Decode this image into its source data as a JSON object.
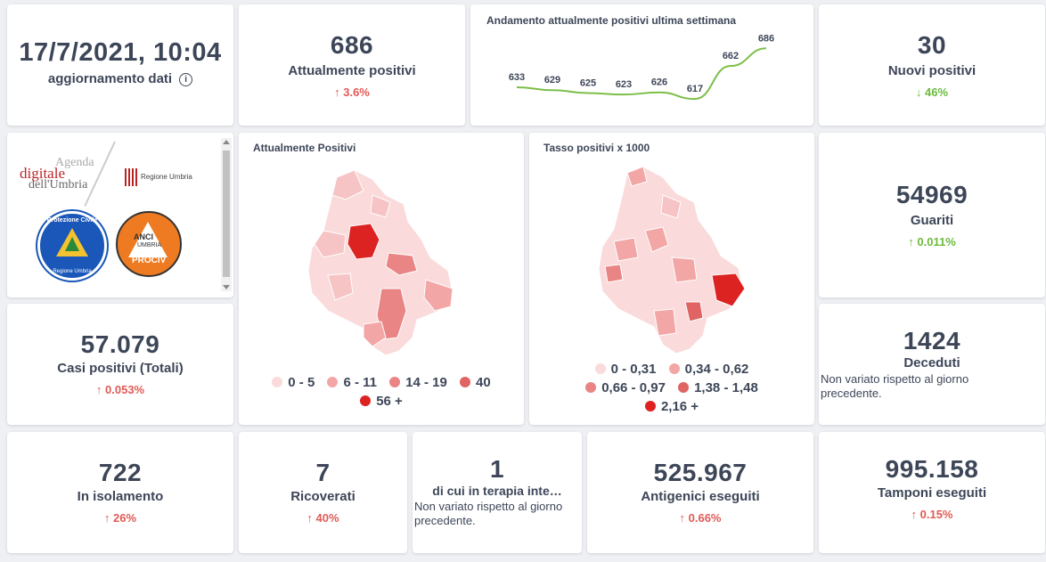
{
  "update": {
    "datetime": "17/7/2021, 10:04",
    "label": "aggiornamento dati",
    "info_icon": "info-icon"
  },
  "attuali": {
    "value": "686",
    "label": "Attualmente positivi",
    "change": "3.6%",
    "direction": "up"
  },
  "trend": {
    "title": "Andamento attualmente positivi ultima settimana",
    "line_color": "#7cbf48"
  },
  "chart_data": {
    "type": "line",
    "title": "Andamento attualmente positivi ultima settimana",
    "x": [
      1,
      2,
      3,
      4,
      5,
      6,
      7,
      8
    ],
    "values": [
      633,
      629,
      625,
      623,
      626,
      617,
      662,
      686
    ],
    "labels": [
      "633",
      "629",
      "625",
      "623",
      "626",
      "617",
      "662",
      "686"
    ],
    "xlabel": "",
    "ylabel": "",
    "grid": false
  },
  "nuovi": {
    "value": "30",
    "label": "Nuovi positivi",
    "change": "46%",
    "direction": "down"
  },
  "logos": {
    "agenda_line1": "Agenda",
    "agenda_line2": "digitale",
    "agenda_line3": "dell'Umbria",
    "regione": "Regione Umbria",
    "protezione": "Protezione Civile",
    "protezione_sub": "Regione Umbria",
    "anci_line1": "ANCI",
    "anci_line2": "UMBRIA",
    "anci_line3": "PROCIV"
  },
  "map1": {
    "title": "Attualmente Positivi",
    "legend": [
      "0 - 5",
      "6 - 11",
      "14 - 19",
      "40",
      "56 +"
    ],
    "colors": [
      "#fadada",
      "#f2a7a6",
      "#e98585",
      "#e06464",
      "#dd2222"
    ]
  },
  "map2": {
    "title": "Tasso positivi x 1000",
    "legend": [
      "0 - 0,31",
      "0,34 - 0,62",
      "0,66 - 0,97",
      "1,38 - 1,48",
      "2,16 +"
    ],
    "colors": [
      "#fadada",
      "#f2a7a6",
      "#e98585",
      "#e06464",
      "#dd2222"
    ]
  },
  "guariti": {
    "value": "54969",
    "label": "Guariti",
    "change": "0.011%",
    "direction": "up"
  },
  "totali": {
    "value": "57.079",
    "label": "Casi positivi (Totali)",
    "change": "0.053%",
    "direction": "up"
  },
  "deceduti": {
    "value": "1424",
    "label": "Deceduti",
    "note": "Non variato rispetto al giorno precedente."
  },
  "isolamento": {
    "value": "722",
    "label": "In isolamento",
    "change": "26%",
    "direction": "up"
  },
  "ricoverati": {
    "value": "7",
    "label": "Ricoverati",
    "change": "40%",
    "direction": "up"
  },
  "terapia": {
    "value": "1",
    "label": "di cui in terapia inte…",
    "note": "Non variato rispetto al giorno precedente."
  },
  "antigenici": {
    "value": "525.967",
    "label": "Antigenici eseguiti",
    "change": "0.66%",
    "direction": "up"
  },
  "tamponi": {
    "value": "995.158",
    "label": "Tamponi eseguiti",
    "change": "0.15%",
    "direction": "up"
  },
  "arrows": {
    "up": "↑",
    "down": "↓"
  }
}
